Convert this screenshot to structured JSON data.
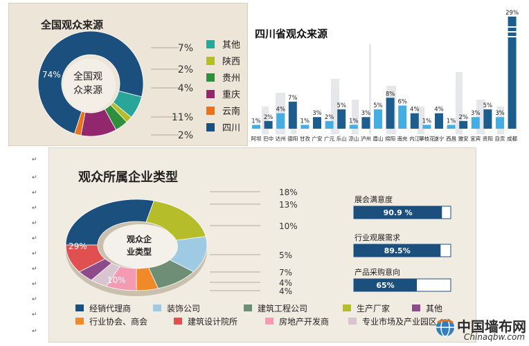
{
  "national": {
    "title": "全国观众来源",
    "center_label_line1": "全国观",
    "center_label_line2": "众来源",
    "chart_data": {
      "type": "pie",
      "title": "全国观众来源",
      "slices": [
        {
          "label": "四川",
          "value": 74,
          "color": "#1b4f7d"
        },
        {
          "label": "其他",
          "value": 7,
          "color": "#2aa59a"
        },
        {
          "label": "陕西",
          "value": 2,
          "color": "#b6bd2b"
        },
        {
          "label": "贵州",
          "value": 4,
          "color": "#2f8f3e"
        },
        {
          "label": "重庆",
          "value": 11,
          "color": "#92276e"
        },
        {
          "label": "云南",
          "value": 2,
          "color": "#e8731f"
        }
      ],
      "slice_labels": [
        "74%"
      ],
      "callouts": [
        "7%",
        "2%",
        "4%",
        "11%",
        "2%"
      ],
      "legend": [
        "其他",
        "陕西",
        "贵州",
        "重庆",
        "云南",
        "四川"
      ]
    }
  },
  "sichuan": {
    "title": "四川省观众来源",
    "chart_data": {
      "type": "bar",
      "title": "四川省观众来源",
      "categories": [
        "阿坝",
        "巴中",
        "达州",
        "德阳",
        "甘孜",
        "广安",
        "广元",
        "乐山",
        "凉山",
        "泸州",
        "眉山",
        "绵阳",
        "南充",
        "内江",
        "攀枝花",
        "遂宁",
        "西昌",
        "雅安",
        "宜宾",
        "资阳",
        "自贡",
        "成都"
      ],
      "values": [
        1,
        2,
        4,
        7,
        1,
        3,
        2,
        5,
        1,
        3,
        5,
        8,
        6,
        4,
        1,
        4,
        1,
        2,
        3,
        5,
        3,
        29
      ],
      "value_labels": [
        "1%",
        "2%",
        "4%",
        "7%",
        "1%",
        "3%",
        "2%",
        "5%",
        "1%",
        "3%",
        "5%",
        "8%",
        "6%",
        "4%",
        "1%",
        "4%",
        "1%",
        "2%",
        "3%",
        "5%",
        "3%",
        "29%"
      ],
      "colors": {
        "dark": "#1d5d8e",
        "light": "#44aee3"
      }
    }
  },
  "industry": {
    "title": "观众所属企业类型",
    "center_label_line1": "观众企",
    "center_label_line2": "业类型",
    "chart_data": {
      "type": "pie",
      "title": "观众所属企业类型",
      "slices": [
        {
          "label": "经销代理商",
          "value": 29,
          "color": "#1b4f7d"
        },
        {
          "label": "生产厂家",
          "value": 18,
          "color": "#b6bd2b"
        },
        {
          "label": "装饰公司",
          "value": 13,
          "color": "#9ecae3"
        },
        {
          "label": "建筑工程公司",
          "value": 10,
          "color": "#6e8f75"
        },
        {
          "label": "行业协会、商会",
          "value": 5,
          "color": "#f08a28"
        },
        {
          "label": "房地产开发商",
          "value": 7,
          "color": "#f59ab0"
        },
        {
          "label": "专业市场及产业园区",
          "value": 4,
          "color": "#d9c5cf"
        },
        {
          "label": "其他",
          "value": 4,
          "color": "#8e4b8c"
        },
        {
          "label": "建筑设计院所",
          "value": 10,
          "color": "#e05050"
        }
      ],
      "slice_labels": [
        "29%",
        "10%"
      ],
      "callouts": [
        "18%",
        "13%",
        "10%",
        "5%",
        "7%",
        "4%",
        "4%"
      ],
      "legend_row1": [
        "经销代理商",
        "装饰公司",
        "建筑工程公司",
        "生产厂家",
        "其他"
      ],
      "legend_row2": [
        "行业协会、商会",
        "建筑设计院所",
        "房地产开发商",
        "专业市场及产业园区"
      ]
    },
    "bars": [
      {
        "label": "展会满意度",
        "value": 90.9,
        "text": "90.9 %"
      },
      {
        "label": "行业观展需求",
        "value": 89.5,
        "text": "89.5%"
      },
      {
        "label": "产品采购意向",
        "value": 65,
        "text": "65%"
      }
    ]
  },
  "watermark": {
    "site_name": "中国墙布网",
    "domain": "Chinaqbw.com"
  }
}
